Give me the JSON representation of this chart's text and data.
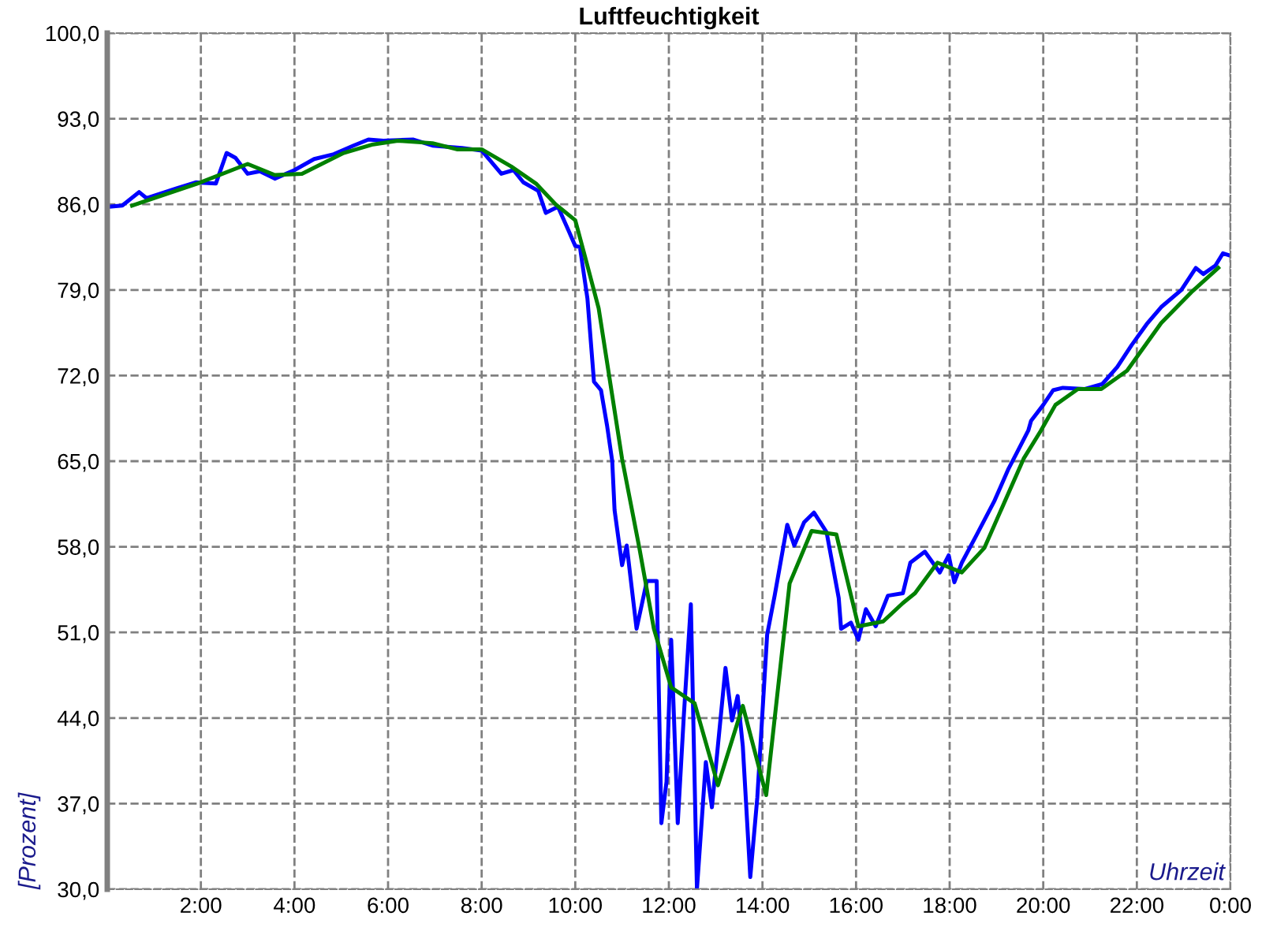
{
  "chart_data": {
    "type": "line",
    "title": "Luftfeuchtigkeit",
    "xlabel": "Uhrzeit",
    "ylabel": "[Prozent]",
    "xlim": [
      0,
      24
    ],
    "ylim": [
      30,
      100
    ],
    "xticks": [
      {
        "value": 0,
        "label": null
      },
      {
        "value": 2,
        "label": "2:00"
      },
      {
        "value": 4,
        "label": "4:00"
      },
      {
        "value": 6,
        "label": "6:00"
      },
      {
        "value": 8,
        "label": "8:00"
      },
      {
        "value": 10,
        "label": "10:00"
      },
      {
        "value": 12,
        "label": "12:00"
      },
      {
        "value": 14,
        "label": "14:00"
      },
      {
        "value": 16,
        "label": "16:00"
      },
      {
        "value": 18,
        "label": "18:00"
      },
      {
        "value": 20,
        "label": "20:00"
      },
      {
        "value": 22,
        "label": "22:00"
      },
      {
        "value": 24,
        "label": "0:00"
      }
    ],
    "yticks": [
      {
        "value": 30,
        "label": "30,0"
      },
      {
        "value": 37,
        "label": "37,0"
      },
      {
        "value": 44,
        "label": "44,0"
      },
      {
        "value": 51,
        "label": "51,0"
      },
      {
        "value": 58,
        "label": "58,0"
      },
      {
        "value": 65,
        "label": "65,0"
      },
      {
        "value": 72,
        "label": "72,0"
      },
      {
        "value": 79,
        "label": "79,0"
      },
      {
        "value": 86,
        "label": "86,0"
      },
      {
        "value": 93,
        "label": "93,0"
      },
      {
        "value": 100,
        "label": "100,0"
      }
    ],
    "grid": true,
    "legend": false,
    "line_style": "solid",
    "marker": "none",
    "series": [
      {
        "color": "#0000ff",
        "x": [
          0.02,
          0.32,
          0.68,
          0.84,
          1.47,
          1.89,
          2.32,
          2.55,
          2.74,
          3.0,
          3.26,
          3.58,
          4.0,
          4.42,
          4.84,
          5.26,
          5.58,
          5.9,
          6.53,
          6.95,
          7.58,
          8.0,
          8.42,
          8.68,
          8.89,
          9.21,
          9.37,
          9.63,
          9.84,
          10.0,
          10.1,
          10.26,
          10.4,
          10.55,
          10.68,
          10.79,
          10.84,
          11.0,
          11.1,
          11.31,
          11.53,
          11.74,
          11.84,
          11.95,
          12.05,
          12.19,
          12.32,
          12.47,
          12.6,
          12.79,
          12.92,
          13.21,
          13.35,
          13.47,
          13.58,
          13.74,
          13.89,
          14.1,
          14.26,
          14.53,
          14.68,
          14.89,
          15.1,
          15.37,
          15.63,
          15.68,
          15.89,
          16.05,
          16.21,
          16.42,
          16.68,
          17.0,
          17.16,
          17.47,
          17.79,
          17.98,
          18.1,
          18.26,
          18.58,
          18.95,
          19.26,
          19.37,
          19.68,
          19.74,
          20.0,
          20.21,
          20.42,
          20.89,
          21.26,
          21.58,
          21.89,
          22.21,
          22.52,
          22.95,
          23.26,
          23.42,
          23.68,
          23.84,
          24.0
        ],
        "values": [
          85.8,
          85.9,
          87.0,
          86.5,
          87.3,
          87.8,
          87.7,
          90.2,
          89.8,
          88.5,
          88.7,
          88.1,
          88.8,
          89.7,
          90.1,
          90.8,
          91.3,
          91.2,
          91.3,
          90.8,
          90.6,
          90.4,
          88.5,
          88.8,
          87.8,
          87.1,
          85.3,
          85.8,
          84.0,
          82.6,
          82.5,
          78.3,
          71.5,
          70.8,
          67.9,
          65.0,
          61.0,
          56.5,
          58.1,
          51.3,
          55.2,
          55.2,
          35.4,
          38.8,
          50.4,
          35.4,
          44.2,
          53.3,
          30.0,
          40.4,
          36.7,
          48.1,
          43.8,
          45.8,
          41.7,
          31.0,
          37.5,
          50.8,
          54.0,
          59.8,
          58.1,
          60.0,
          60.8,
          59.2,
          53.8,
          51.3,
          51.8,
          50.4,
          52.9,
          51.5,
          54.0,
          54.2,
          56.7,
          57.6,
          55.9,
          57.3,
          55.1,
          56.7,
          59.0,
          61.7,
          64.4,
          65.2,
          67.5,
          68.3,
          69.6,
          70.8,
          71.0,
          70.9,
          71.3,
          72.7,
          74.5,
          76.2,
          77.6,
          79.0,
          80.8,
          80.3,
          81.0,
          82.0,
          81.8
        ]
      },
      {
        "color": "#008000",
        "x": [
          0.53,
          2.0,
          3.0,
          3.58,
          4.16,
          5.05,
          5.68,
          6.21,
          6.95,
          7.47,
          8.0,
          8.63,
          9.16,
          9.58,
          10.0,
          10.21,
          10.5,
          11.0,
          11.37,
          11.68,
          12.05,
          12.55,
          13.05,
          13.58,
          14.08,
          14.58,
          15.05,
          15.58,
          16.05,
          16.58,
          17.0,
          17.26,
          17.74,
          18.26,
          18.74,
          19.58,
          19.95,
          20.26,
          20.74,
          21.24,
          21.79,
          22.52,
          23.16,
          23.74
        ],
        "values": [
          85.9,
          87.8,
          89.3,
          88.4,
          88.5,
          90.2,
          90.9,
          91.2,
          91.0,
          90.5,
          90.5,
          89.1,
          87.7,
          86.0,
          84.7,
          81.7,
          77.5,
          65.2,
          57.9,
          51.3,
          46.5,
          45.2,
          38.5,
          45.0,
          37.7,
          55.0,
          59.3,
          59.0,
          51.5,
          51.9,
          53.4,
          54.2,
          56.7,
          55.9,
          57.9,
          65.2,
          67.5,
          69.6,
          70.9,
          70.9,
          72.4,
          76.3,
          78.8,
          80.8
        ]
      }
    ]
  }
}
